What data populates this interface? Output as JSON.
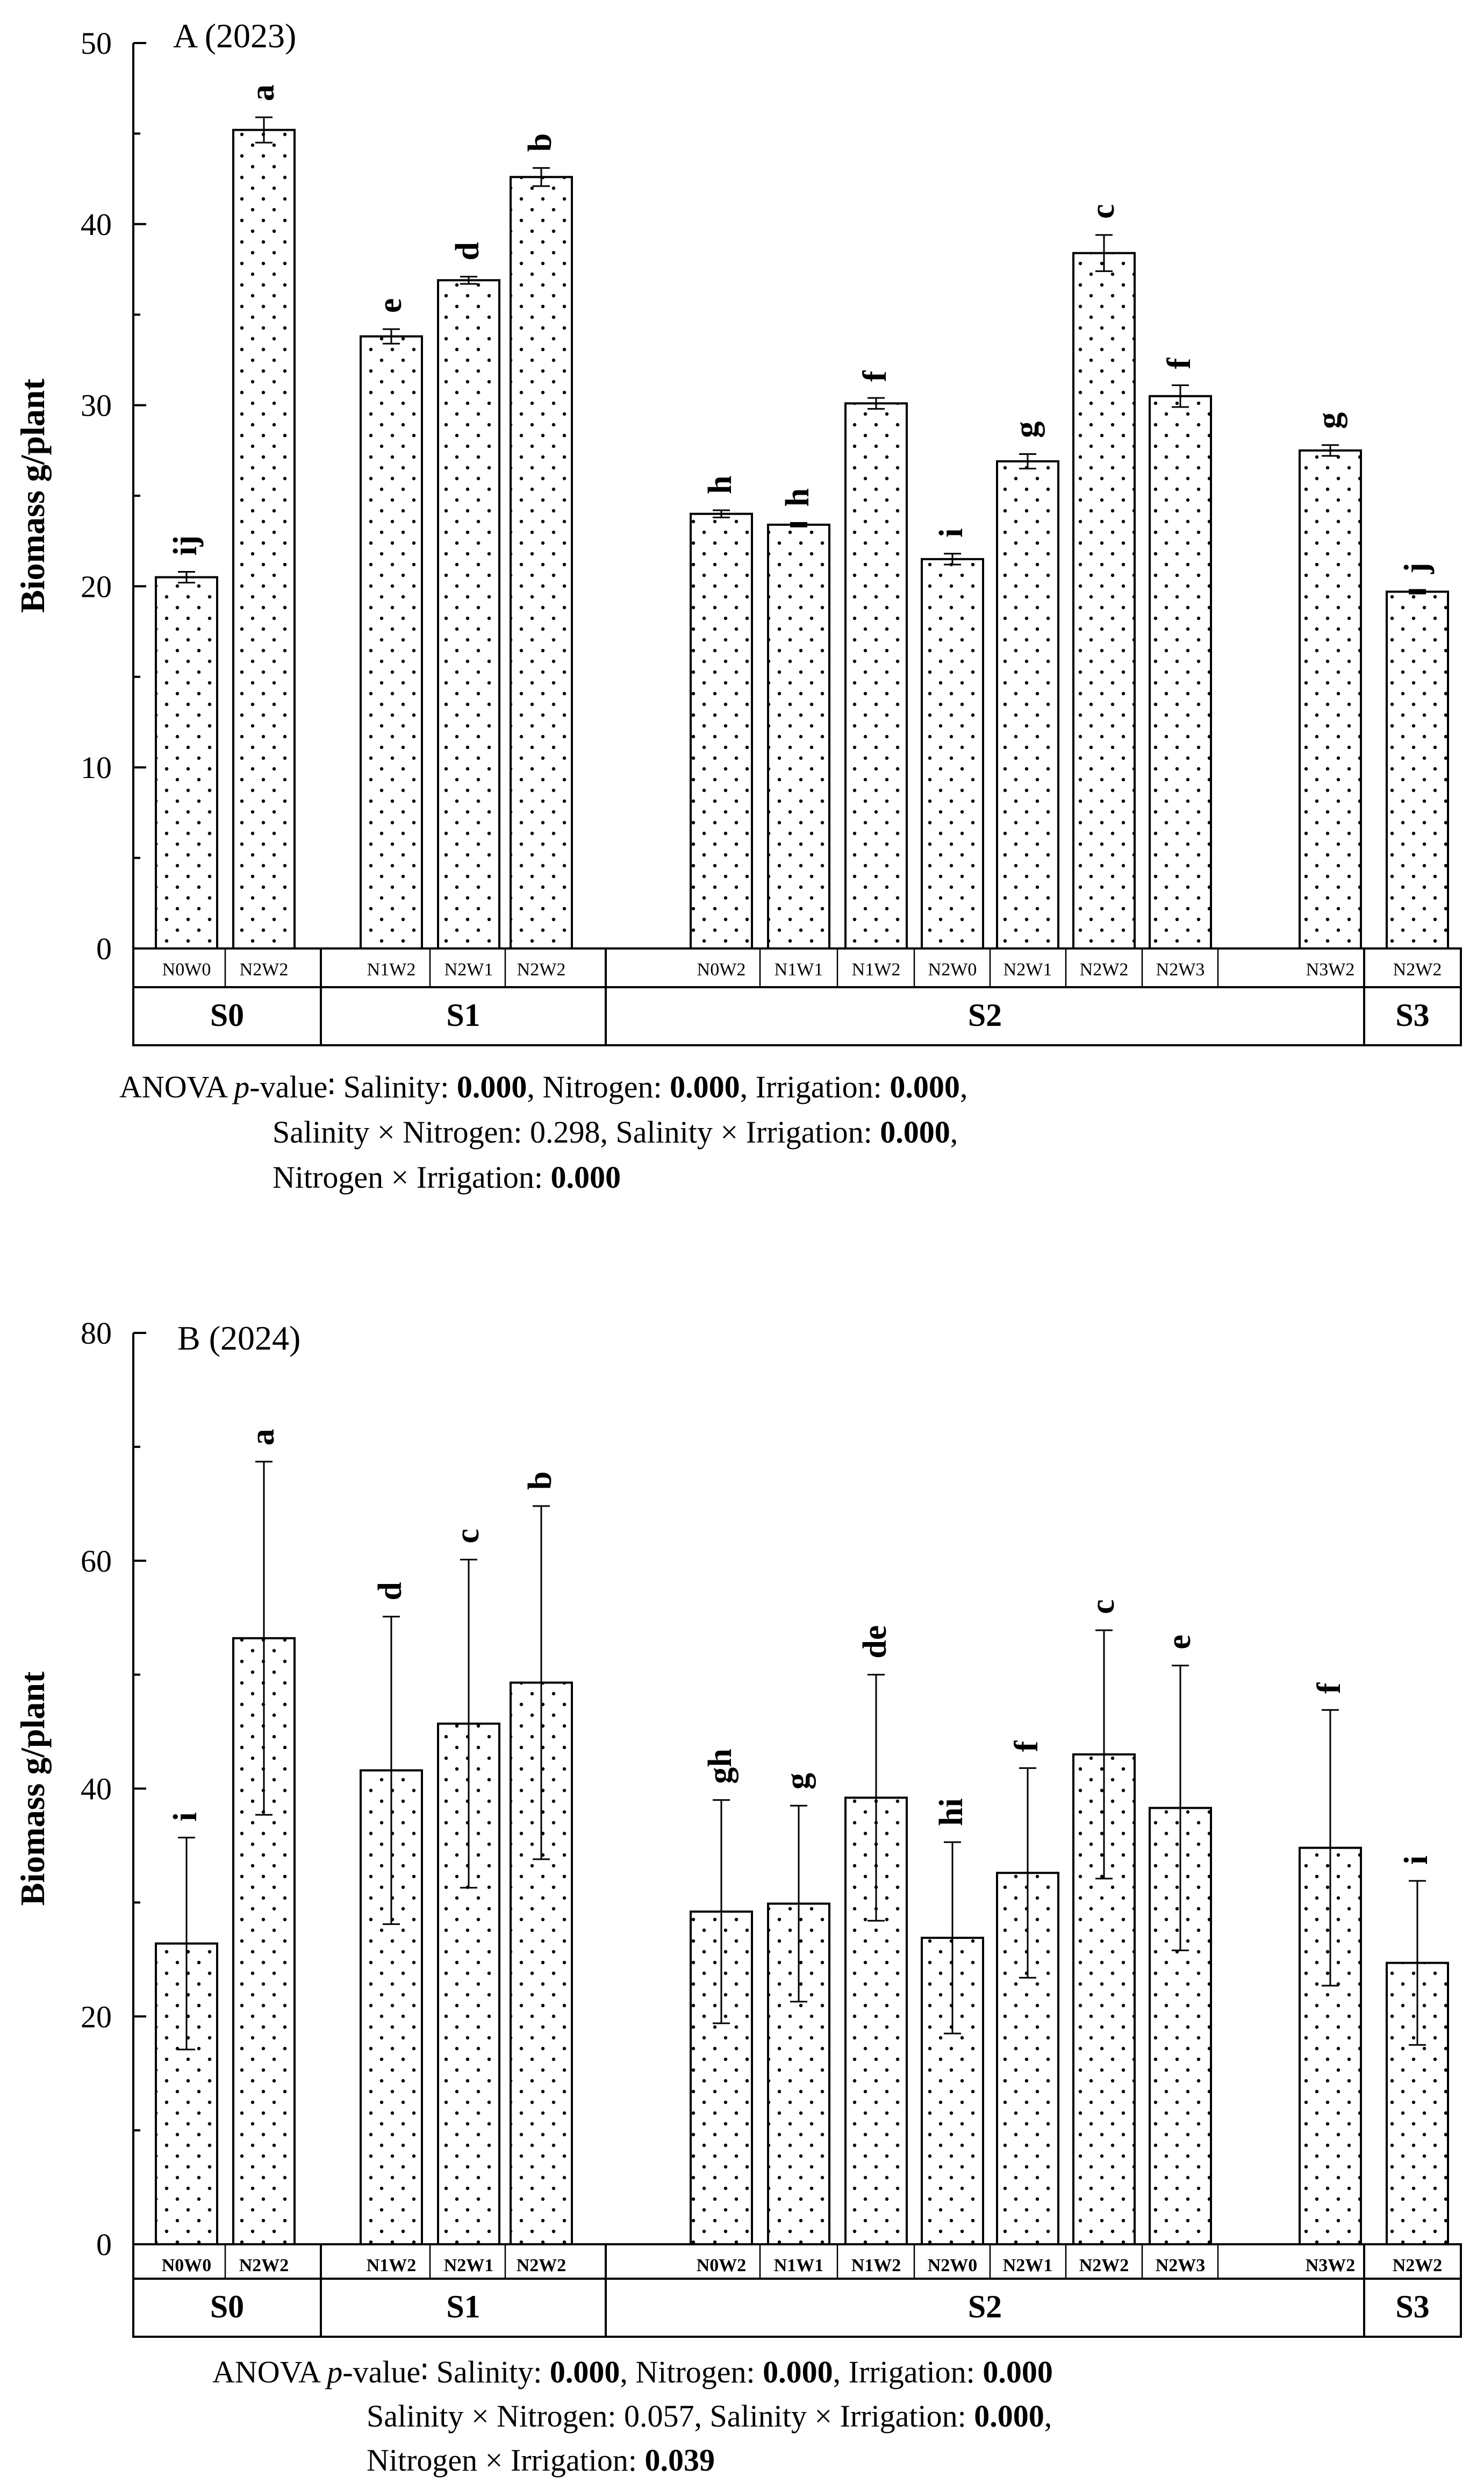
{
  "chart_data": [
    {
      "type": "bar",
      "title": "A (2023)",
      "ylabel": "Biomass g/plant",
      "ylim": [
        0,
        50
      ],
      "yticks": [
        0,
        10,
        20,
        30,
        40,
        50
      ],
      "ytick_labels": [
        "0",
        "10",
        "20",
        "30",
        "40",
        "50"
      ],
      "groups": [
        {
          "label": "S0",
          "bars": [
            {
              "category": "N0W0",
              "value": 20.5,
              "error": 0.3,
              "letter": "ij"
            },
            {
              "category": "N2W2",
              "value": 45.2,
              "error": 0.7,
              "letter": "a"
            }
          ]
        },
        {
          "label": "S1",
          "bars": [
            {
              "category": "N1W2",
              "value": 33.8,
              "error": 0.4,
              "letter": "e"
            },
            {
              "category": "N2W1",
              "value": 36.9,
              "error": 0.2,
              "letter": "d"
            },
            {
              "category": "N2W2",
              "value": 42.6,
              "error": 0.5,
              "letter": "b"
            }
          ]
        },
        {
          "label": "S2",
          "bars": [
            {
              "category": "N0W2",
              "value": 24.0,
              "error": 0.2,
              "letter": "h"
            },
            {
              "category": "N1W1",
              "value": 23.4,
              "error": 0.1,
              "letter": "h"
            },
            {
              "category": "N1W2",
              "value": 30.1,
              "error": 0.3,
              "letter": "f"
            },
            {
              "category": "N2W0",
              "value": 21.5,
              "error": 0.3,
              "letter": "i"
            },
            {
              "category": "N2W1",
              "value": 26.9,
              "error": 0.4,
              "letter": "g"
            },
            {
              "category": "N2W2",
              "value": 38.4,
              "error": 1.0,
              "letter": "c"
            },
            {
              "category": "N2W3",
              "value": 30.5,
              "error": 0.6,
              "letter": "f"
            },
            {
              "category": "N3W2",
              "value": 27.5,
              "error": 0.3,
              "letter": "g"
            }
          ]
        },
        {
          "label": "S3",
          "bars": [
            {
              "category": "N2W2",
              "value": 19.7,
              "error": 0.1,
              "letter": "j"
            }
          ]
        }
      ],
      "anova": {
        "line1": [
          {
            "text": "ANOVA "
          },
          {
            "text": "p",
            "italic": true
          },
          {
            "text": "-value∶   Salinity: "
          },
          {
            "text": "0.000",
            "bold": true
          },
          {
            "text": ", Nitrogen: "
          },
          {
            "text": "0.000",
            "bold": true
          },
          {
            "text": ", Irrigation: "
          },
          {
            "text": "0.000",
            "bold": true
          },
          {
            "text": ","
          }
        ],
        "line2": [
          {
            "text": "Salinity × Nitrogen: 0.298, Salinity × Irrigation: "
          },
          {
            "text": "0.000",
            "bold": true
          },
          {
            "text": ","
          }
        ],
        "line3": [
          {
            "text": "Nitrogen × Irrigation: "
          },
          {
            "text": "0.000",
            "bold": true
          }
        ]
      }
    },
    {
      "type": "bar",
      "title": "B (2024)",
      "ylabel": "Biomass g/plant",
      "ylim": [
        0,
        80
      ],
      "yticks": [
        0,
        20,
        40,
        60,
        80
      ],
      "ytick_labels": [
        "0",
        "20",
        "40",
        "60",
        "80"
      ],
      "groups": [
        {
          "label": "S0",
          "bars": [
            {
              "category": "N0W0",
              "value": 26.4,
              "error": 9.3,
              "letter": "i"
            },
            {
              "category": "N2W2",
              "value": 53.2,
              "error": 15.5,
              "letter": "a"
            }
          ]
        },
        {
          "label": "S1",
          "bars": [
            {
              "category": "N1W2",
              "value": 41.6,
              "error": 13.5,
              "letter": "d"
            },
            {
              "category": "N2W1",
              "value": 45.7,
              "error": 14.4,
              "letter": "c"
            },
            {
              "category": "N2W2",
              "value": 49.3,
              "error": 15.5,
              "letter": "b"
            }
          ]
        },
        {
          "label": "S2",
          "bars": [
            {
              "category": "N0W2",
              "value": 29.2,
              "error": 9.8,
              "letter": "gh"
            },
            {
              "category": "N1W1",
              "value": 29.9,
              "error": 8.6,
              "letter": "g"
            },
            {
              "category": "N1W2",
              "value": 39.2,
              "error": 10.8,
              "letter": "de"
            },
            {
              "category": "N2W0",
              "value": 26.9,
              "error": 8.4,
              "letter": "hi"
            },
            {
              "category": "N2W1",
              "value": 32.6,
              "error": 9.2,
              "letter": "f"
            },
            {
              "category": "N2W2",
              "value": 43.0,
              "error": 10.9,
              "letter": "c"
            },
            {
              "category": "N2W3",
              "value": 38.3,
              "error": 12.5,
              "letter": "e"
            },
            {
              "category": "N3W2",
              "value": 34.8,
              "error": 12.1,
              "letter": "f"
            }
          ]
        },
        {
          "label": "S3",
          "bars": [
            {
              "category": "N2W2",
              "value": 24.7,
              "error": 7.2,
              "letter": "i"
            }
          ]
        }
      ],
      "anova": {
        "line1": [
          {
            "text": "ANOVA  "
          },
          {
            "text": "p",
            "italic": true
          },
          {
            "text": "-value∶    Salinity: "
          },
          {
            "text": "0.000",
            "bold": true
          },
          {
            "text": ",  Nitrogen: "
          },
          {
            "text": "0.000",
            "bold": true
          },
          {
            "text": ",  Irrigation: "
          },
          {
            "text": "0.000",
            "bold": true
          }
        ],
        "line2": [
          {
            "text": "Salinity × Nitrogen: 0.057, Salinity × Irrigation: "
          },
          {
            "text": "0.000",
            "bold": true
          },
          {
            "text": ","
          }
        ],
        "line3": [
          {
            "text": "Nitrogen × Irrigation: "
          },
          {
            "text": "0.039",
            "bold": true
          }
        ]
      }
    }
  ]
}
